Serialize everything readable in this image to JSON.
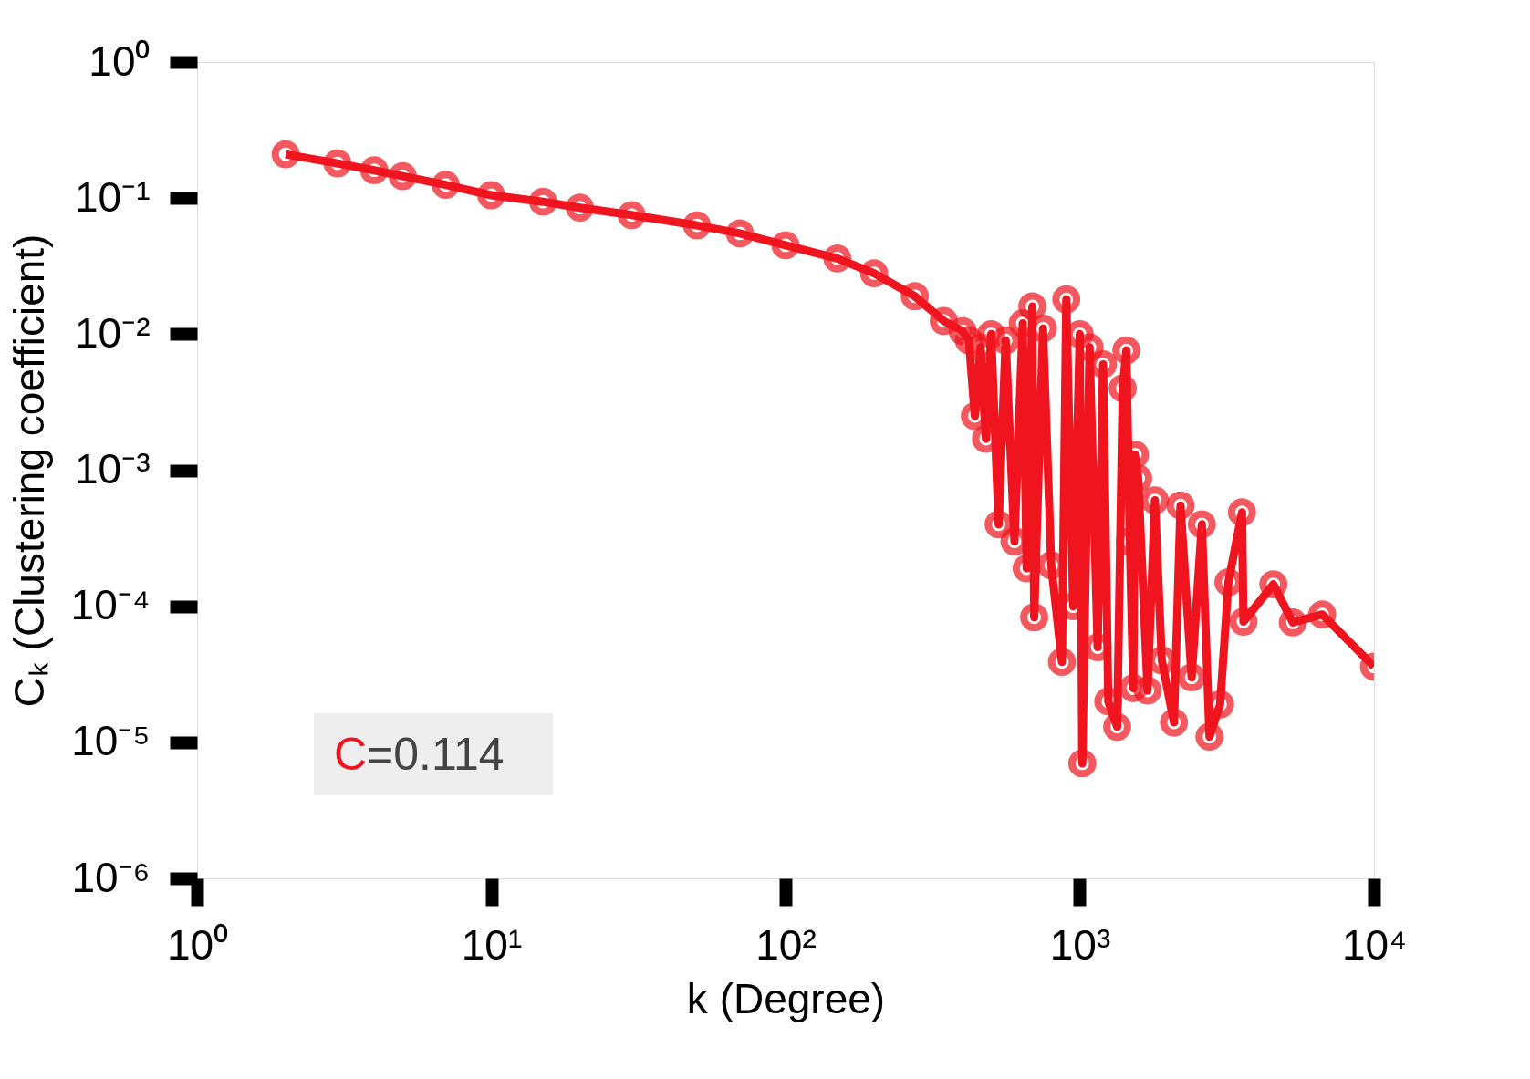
{
  "chart_data": {
    "type": "line",
    "xlabel": "k (Degree)",
    "ylabel": "Cₖ (Clustering coefficient)",
    "log": "xy",
    "grid": false,
    "marker": "circle",
    "line_style": "solid",
    "xlim": [
      1,
      10000
    ],
    "ylim": [
      1e-06,
      1
    ],
    "xticks": [
      {
        "value": 1,
        "label": "10⁰"
      },
      {
        "value": 10,
        "label": "10¹"
      },
      {
        "value": 100,
        "label": "10²"
      },
      {
        "value": 1000,
        "label": "10³"
      },
      {
        "value": 10000,
        "label": "10⁴"
      }
    ],
    "yticks": [
      {
        "value": 1e-06,
        "label": "10⁻⁶"
      },
      {
        "value": 1e-05,
        "label": "10⁻⁵"
      },
      {
        "value": 0.0001,
        "label": "10⁻⁴"
      },
      {
        "value": 0.001,
        "label": "10⁻³"
      },
      {
        "value": 0.01,
        "label": "10⁻²"
      },
      {
        "value": 0.1,
        "label": "10⁻¹"
      },
      {
        "value": 1,
        "label": "10⁰"
      }
    ],
    "annotations": [
      "C=0.114"
    ],
    "series": [
      {
        "color": "#f0141e",
        "x": [
          2,
          3,
          4,
          5,
          7,
          10,
          15,
          20,
          30,
          50,
          70,
          100,
          150,
          200,
          275,
          345,
          400,
          420,
          440,
          460,
          480,
          500,
          530,
          560,
          600,
          640,
          660,
          690,
          700,
          750,
          800,
          870,
          900,
          950,
          1000,
          1020,
          1080,
          1150,
          1200,
          1250,
          1340,
          1400,
          1440,
          1480,
          1520,
          1540,
          1580,
          1700,
          1800,
          1900,
          2090,
          2200,
          2400,
          2600,
          2760,
          3000,
          3200,
          3560,
          3600,
          4550,
          5300,
          6670,
          10000
        ],
        "values": [
          0.21,
          0.18,
          0.16,
          0.145,
          0.125,
          0.105,
          0.094,
          0.085,
          0.075,
          0.063,
          0.055,
          0.045,
          0.036,
          0.028,
          0.019,
          0.0125,
          0.0105,
          0.009,
          0.0025,
          0.008,
          0.0017,
          0.01,
          0.0004,
          0.009,
          0.0003,
          0.012,
          0.00019,
          0.016,
          8.3e-05,
          0.011,
          0.0002,
          3.9e-05,
          0.018,
          0.0001,
          0.01,
          7e-06,
          0.008,
          5e-05,
          0.006,
          2e-05,
          1.3e-05,
          0.004,
          0.0076,
          0.0003,
          2.5e-05,
          0.0013,
          0.00087,
          2.4e-05,
          0.0006,
          4e-05,
          1.4e-05,
          0.00055,
          3e-05,
          0.0004,
          1.1e-05,
          1.9e-05,
          0.00015,
          0.00049,
          7.7e-05,
          0.000145,
          7.6e-05,
          8.7e-05,
          3.6e-05
        ]
      }
    ]
  }
}
